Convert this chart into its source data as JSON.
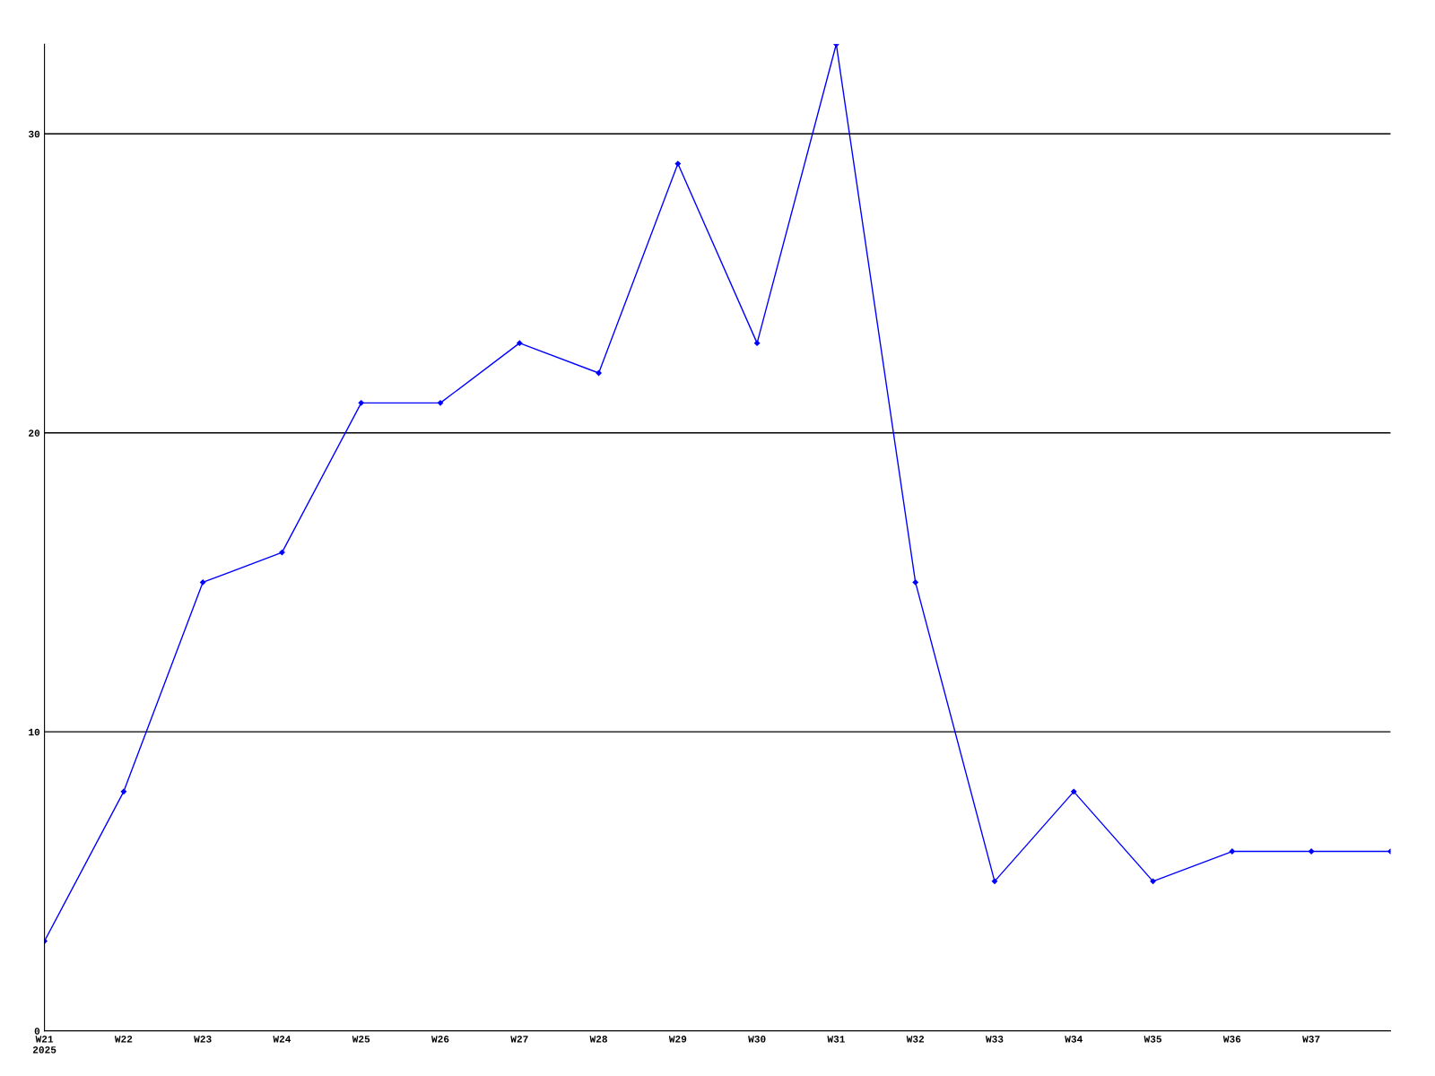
{
  "chart_data": {
    "type": "line",
    "categories": [
      "W21\n2025",
      "W22",
      "W23",
      "W24",
      "W25",
      "W26",
      "W27",
      "W28",
      "W29",
      "W30",
      "W31",
      "W32",
      "W33",
      "W34",
      "W35",
      "W36",
      "W37",
      null
    ],
    "series": [
      {
        "color": "#0000ff",
        "values": [
          3,
          8,
          15,
          16,
          21,
          21,
          23,
          22,
          29,
          23,
          33,
          15,
          5,
          8,
          5,
          6,
          6,
          6
        ]
      }
    ],
    "ylim": [
      0,
      33
    ],
    "yticks": [
      0,
      10,
      20,
      30
    ],
    "grid": "y",
    "marker": "diamond",
    "line_style": "solid"
  }
}
